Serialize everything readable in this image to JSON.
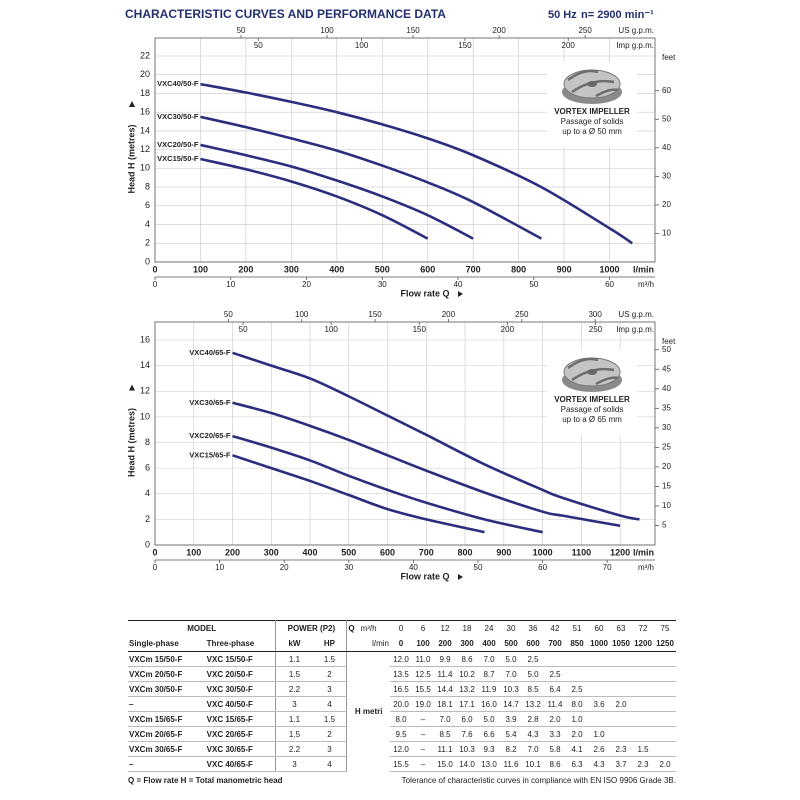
{
  "header": {
    "title": "CHARACTERISTIC CURVES AND PERFORMANCE DATA",
    "frequency": "50 Hz",
    "speed": "n= 2900 min⁻¹"
  },
  "chart_data": [
    {
      "type": "line",
      "x": [
        100,
        200,
        300,
        400,
        500,
        600,
        700,
        850,
        1000,
        1050
      ],
      "xlim": [
        0,
        1100
      ],
      "xticks": [
        0,
        100,
        200,
        300,
        400,
        500,
        600,
        700,
        800,
        900,
        1000
      ],
      "x_unit": "l/min",
      "xlabel": "Flow rate Q",
      "ylabel": "Head H (metres)",
      "ylim": [
        0,
        22
      ],
      "yticks": [
        0,
        2,
        4,
        6,
        8,
        10,
        12,
        14,
        16,
        18,
        20,
        22
      ],
      "y2label": "feet",
      "y2lim": [
        0,
        72.18
      ],
      "y2ticks": [
        10,
        20,
        30,
        40,
        50,
        60
      ],
      "grid": true,
      "secondary_x_axes": [
        {
          "position": "top",
          "label": "US g.p.m.",
          "lim": [
            0,
            290.6
          ],
          "ticks": [
            50,
            100,
            150,
            200,
            250
          ]
        },
        {
          "position": "top",
          "label": "Imp g.p.m.",
          "lim": [
            0,
            242
          ],
          "ticks": [
            50,
            100,
            150,
            200
          ]
        },
        {
          "position": "bottom",
          "label": "m³/h",
          "lim": [
            0,
            66
          ],
          "ticks": [
            0,
            10,
            20,
            30,
            40,
            50,
            60
          ]
        }
      ],
      "series": [
        {
          "name": "VXC40/50-F",
          "color": "#2b2e7e",
          "values": [
            19.0,
            18.1,
            17.1,
            16.0,
            14.7,
            13.2,
            11.4,
            8.0,
            3.6,
            2.0
          ]
        },
        {
          "name": "VXC30/50-F",
          "color": "#2b2e7e",
          "values": [
            15.5,
            14.4,
            13.2,
            11.9,
            10.3,
            8.5,
            6.4,
            2.5,
            null,
            null
          ]
        },
        {
          "name": "VXC20/50-F",
          "color": "#2b2e7e",
          "values": [
            12.5,
            11.4,
            10.2,
            8.7,
            7.0,
            5.0,
            2.5,
            null,
            null,
            null
          ]
        },
        {
          "name": "VXC15/50-F",
          "color": "#2b2e7e",
          "values": [
            11.0,
            9.9,
            8.6,
            7.0,
            5.0,
            2.5,
            null,
            null,
            null,
            null
          ]
        }
      ],
      "annotation": [
        "VORTEX IMPELLER",
        "Passage of solids",
        "up to a Ø 50 mm"
      ]
    },
    {
      "type": "line",
      "x": [
        200,
        300,
        400,
        500,
        600,
        700,
        850,
        1000,
        1050,
        1200,
        1250
      ],
      "xlim": [
        0,
        1290
      ],
      "xticks": [
        0,
        100,
        200,
        300,
        400,
        500,
        600,
        700,
        800,
        900,
        1000,
        1100,
        1200
      ],
      "x_unit": "l/min",
      "xlabel": "Flow rate Q",
      "ylabel": "Head H (metres)",
      "ylim": [
        0,
        16
      ],
      "yticks": [
        0,
        2,
        4,
        6,
        8,
        10,
        12,
        14,
        16
      ],
      "y2label": "feet",
      "y2lim": [
        0,
        52.49
      ],
      "y2ticks": [
        5,
        10,
        15,
        20,
        25,
        30,
        35,
        40,
        45,
        50
      ],
      "grid": true,
      "secondary_x_axes": [
        {
          "position": "top",
          "label": "US g.p.m.",
          "lim": [
            0,
            340.8
          ],
          "ticks": [
            50,
            100,
            150,
            200,
            250,
            300
          ]
        },
        {
          "position": "top",
          "label": "Imp g.p.m.",
          "lim": [
            0,
            283.8
          ],
          "ticks": [
            50,
            100,
            150,
            200,
            250
          ]
        },
        {
          "position": "bottom",
          "label": "m³/h",
          "lim": [
            0,
            77.4
          ],
          "ticks": [
            0,
            10,
            20,
            30,
            40,
            50,
            60,
            70
          ]
        }
      ],
      "series": [
        {
          "name": "VXC40/65-F",
          "color": "#2b2e7e",
          "values": [
            15.0,
            14.0,
            13.0,
            11.6,
            10.1,
            8.6,
            6.3,
            4.3,
            3.7,
            2.3,
            2.0
          ]
        },
        {
          "name": "VXC30/65-F",
          "color": "#2b2e7e",
          "values": [
            11.1,
            10.3,
            9.3,
            8.2,
            7.0,
            5.8,
            4.1,
            2.6,
            2.3,
            1.5,
            null
          ]
        },
        {
          "name": "VXC20/65-F",
          "color": "#2b2e7e",
          "values": [
            8.5,
            7.6,
            6.6,
            5.4,
            4.3,
            3.3,
            2.0,
            1.0,
            null,
            null,
            null
          ]
        },
        {
          "name": "VXC15/65-F",
          "color": "#2b2e7e",
          "values": [
            7.0,
            6.0,
            5.0,
            3.9,
            2.8,
            2.0,
            1.0,
            null,
            null,
            null,
            null
          ]
        }
      ],
      "annotation": [
        "VORTEX IMPELLER",
        "Passage of solids",
        "up to a Ø 65 mm"
      ]
    }
  ],
  "table": {
    "header": {
      "model": "MODEL",
      "power": "POWER (P2)",
      "q": "Q",
      "q_unit_1": "m³/h",
      "q_unit_2": "l/min",
      "single": "Single-phase",
      "three": "Three-phase",
      "kw": "kW",
      "hp": "HP",
      "h": "H metri"
    },
    "flow_m3h": [
      "0",
      "6",
      "12",
      "18",
      "24",
      "30",
      "36",
      "42",
      "51",
      "60",
      "63",
      "72",
      "75"
    ],
    "flow_lmin": [
      "0",
      "100",
      "200",
      "300",
      "400",
      "500",
      "600",
      "700",
      "850",
      "1000",
      "1050",
      "1200",
      "1250"
    ],
    "rows": [
      {
        "single": "VXCm 15/50-F",
        "three": "VXC 15/50-F",
        "kw": "1.1",
        "hp": "1.5",
        "head": [
          "12.0",
          "11.0",
          "9.9",
          "8.6",
          "7.0",
          "5.0",
          "2.5"
        ]
      },
      {
        "single": "VXCm 20/50-F",
        "three": "VXC 20/50-F",
        "kw": "1.5",
        "hp": "2",
        "head": [
          "13.5",
          "12.5",
          "11.4",
          "10.2",
          "8.7",
          "7.0",
          "5.0",
          "2.5"
        ]
      },
      {
        "single": "VXCm 30/50-F",
        "three": "VXC 30/50-F",
        "kw": "2.2",
        "hp": "3",
        "head": [
          "16.5",
          "15.5",
          "14.4",
          "13.2",
          "11.9",
          "10.3",
          "8.5",
          "6.4",
          "2.5"
        ]
      },
      {
        "single": "–",
        "three": "VXC 40/50-F",
        "kw": "3",
        "hp": "4",
        "head": [
          "20.0",
          "19.0",
          "18.1",
          "17.1",
          "16.0",
          "14.7",
          "13.2",
          "11.4",
          "8.0",
          "3.6",
          "2.0"
        ]
      },
      {
        "single": "VXCm 15/65-F",
        "three": "VXC 15/65-F",
        "kw": "1.1",
        "hp": "1.5",
        "head": [
          "8.0",
          "–",
          "7.0",
          "6.0",
          "5.0",
          "3.9",
          "2.8",
          "2.0",
          "1.0"
        ]
      },
      {
        "single": "VXCm 20/65-F",
        "three": "VXC 20/65-F",
        "kw": "1.5",
        "hp": "2",
        "head": [
          "9.5",
          "–",
          "8.5",
          "7.6",
          "6.6",
          "5.4",
          "4.3",
          "3.3",
          "2.0",
          "1.0"
        ]
      },
      {
        "single": "VXCm 30/65-F",
        "three": "VXC 30/65-F",
        "kw": "2.2",
        "hp": "3",
        "head": [
          "12.0",
          "–",
          "11.1",
          "10.3",
          "9.3",
          "8.2",
          "7.0",
          "5.8",
          "4.1",
          "2.6",
          "2.3",
          "1.5"
        ]
      },
      {
        "single": "–",
        "three": "VXC 40/65-F",
        "kw": "3",
        "hp": "4",
        "head": [
          "15.5",
          "–",
          "15.0",
          "14.0",
          "13.0",
          "11.6",
          "10.1",
          "8.6",
          "6.3",
          "4.3",
          "3.7",
          "2.3",
          "2.0"
        ]
      }
    ]
  },
  "footer": {
    "legend": "Q = Flow rate   H = Total manometric head",
    "tolerance": "Tolerance of characteristic curves in compliance with EN ISO 9906 Grade 3B."
  }
}
